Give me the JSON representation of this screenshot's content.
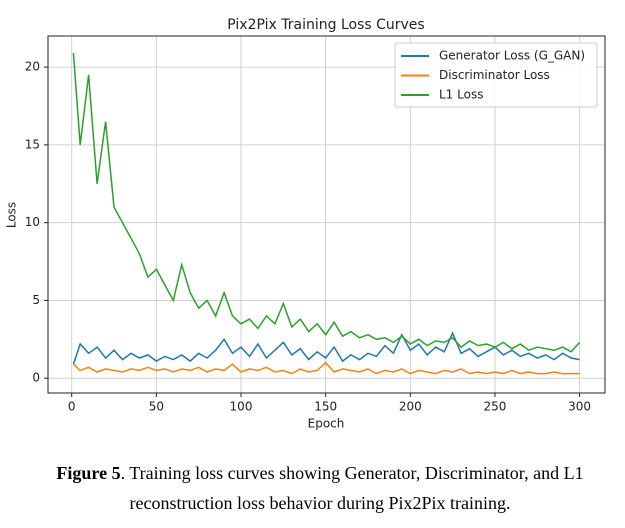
{
  "chart_data": {
    "type": "line",
    "title": "Pix2Pix Training Loss Curves",
    "xlabel": "Epoch",
    "ylabel": "Loss",
    "x": [
      1,
      5,
      10,
      15,
      20,
      25,
      30,
      35,
      40,
      45,
      50,
      55,
      60,
      65,
      70,
      75,
      80,
      85,
      90,
      95,
      100,
      105,
      110,
      115,
      120,
      125,
      130,
      135,
      140,
      145,
      150,
      155,
      160,
      165,
      170,
      175,
      180,
      185,
      190,
      195,
      200,
      205,
      210,
      215,
      220,
      225,
      230,
      235,
      240,
      245,
      250,
      255,
      260,
      265,
      270,
      275,
      280,
      285,
      290,
      295,
      300
    ],
    "series": [
      {
        "name": "Generator Loss (G_GAN)",
        "color": "#1f77b4",
        "values": [
          0.9,
          2.2,
          1.6,
          2.0,
          1.3,
          1.8,
          1.2,
          1.6,
          1.3,
          1.5,
          1.1,
          1.4,
          1.2,
          1.5,
          1.1,
          1.6,
          1.3,
          1.8,
          2.5,
          1.6,
          2.0,
          1.4,
          2.2,
          1.3,
          1.8,
          2.3,
          1.5,
          1.9,
          1.2,
          1.7,
          1.3,
          2.0,
          1.1,
          1.5,
          1.2,
          1.6,
          1.4,
          2.1,
          1.6,
          2.8,
          1.8,
          2.2,
          1.5,
          2.0,
          1.7,
          2.9,
          1.6,
          1.9,
          1.4,
          1.7,
          2.0,
          1.5,
          1.8,
          1.4,
          1.6,
          1.3,
          1.5,
          1.2,
          1.6,
          1.3,
          1.2
        ]
      },
      {
        "name": "Discriminator Loss",
        "color": "#ff7f0e",
        "values": [
          0.9,
          0.5,
          0.7,
          0.4,
          0.6,
          0.5,
          0.4,
          0.6,
          0.5,
          0.7,
          0.5,
          0.6,
          0.4,
          0.6,
          0.5,
          0.7,
          0.4,
          0.6,
          0.5,
          0.9,
          0.4,
          0.6,
          0.5,
          0.7,
          0.4,
          0.5,
          0.3,
          0.6,
          0.4,
          0.5,
          1.0,
          0.4,
          0.6,
          0.5,
          0.4,
          0.6,
          0.3,
          0.5,
          0.4,
          0.6,
          0.3,
          0.5,
          0.4,
          0.3,
          0.5,
          0.4,
          0.6,
          0.3,
          0.4,
          0.3,
          0.4,
          0.3,
          0.5,
          0.3,
          0.4,
          0.3,
          0.3,
          0.4,
          0.3,
          0.3,
          0.3
        ]
      },
      {
        "name": "L1 Loss",
        "color": "#2ca02c",
        "values": [
          20.9,
          15,
          19.5,
          12.5,
          16.5,
          11,
          10,
          9,
          8,
          6.5,
          7,
          6,
          5,
          7.3,
          5.5,
          4.5,
          5,
          4,
          5.5,
          4,
          3.5,
          3.8,
          3.2,
          4,
          3.5,
          4.8,
          3.3,
          3.8,
          3,
          3.5,
          2.8,
          3.6,
          2.7,
          3,
          2.6,
          2.8,
          2.5,
          2.6,
          2.3,
          2.7,
          2.2,
          2.5,
          2.1,
          2.4,
          2.3,
          2.6,
          2.0,
          2.4,
          2.1,
          2.2,
          2.0,
          2.3,
          1.9,
          2.2,
          1.8,
          2.0,
          1.9,
          1.8,
          2.0,
          1.7,
          2.3
        ]
      }
    ],
    "xlim": [
      -14,
      315
    ],
    "ylim": [
      -0.95,
      22.0
    ],
    "xticks": [
      0,
      50,
      100,
      150,
      200,
      250,
      300
    ],
    "yticks": [
      0,
      5,
      10,
      15,
      20
    ],
    "grid": true,
    "legend": "upper right"
  },
  "caption": {
    "label": "Figure 5",
    "text": ". Training loss curves showing Generator, Discriminator, and L1 reconstruction loss behavior during Pix2Pix training."
  }
}
